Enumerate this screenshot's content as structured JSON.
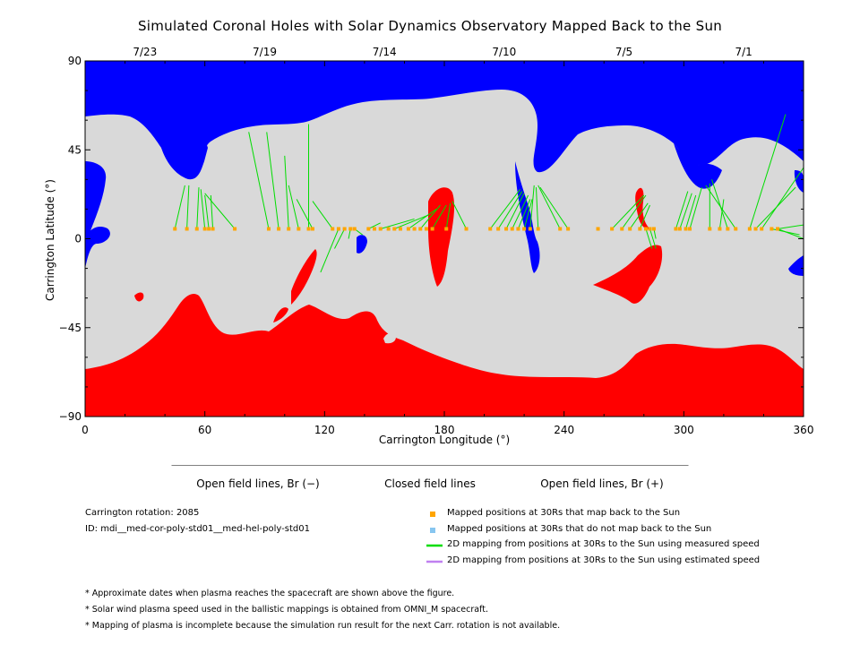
{
  "title": "Simulated Coronal Holes with Solar Dynamics Observatory Mapped Back to the Sun",
  "chart_data": {
    "type": "heatmap",
    "xlabel": "Carrington Longitude (°)",
    "ylabel": "Carrington Latitude (°)",
    "xlim": [
      0,
      360
    ],
    "ylim": [
      -90,
      90
    ],
    "x_ticks": [
      0,
      60,
      120,
      180,
      240,
      300,
      360
    ],
    "y_ticks": [
      90,
      45,
      0,
      -45,
      -90
    ],
    "y_tick_labels": [
      "90",
      "45",
      "0",
      "−45",
      "−90"
    ],
    "top_axis_dates": [
      {
        "label": "7/23",
        "lon": 30
      },
      {
        "label": "7/19",
        "lon": 90
      },
      {
        "label": "7/14",
        "lon": 150
      },
      {
        "label": "7/10",
        "lon": 210
      },
      {
        "label": "7/5",
        "lon": 270
      },
      {
        "label": "7/1",
        "lon": 330
      }
    ],
    "colorbar": [
      {
        "label": "Open field lines, Br (−)",
        "color": "#0000ff"
      },
      {
        "label": "Closed field lines",
        "color": "#d9d9d9"
      },
      {
        "label": "Open field lines, Br (+)",
        "color": "#ff0000"
      }
    ],
    "regions": {
      "north_negative_color": "#0000ff",
      "closed_color": "#d9d9d9",
      "south_positive_color": "#ff0000"
    },
    "mapped_points_lon": [
      45,
      51,
      56,
      60,
      62,
      64,
      75,
      92,
      97,
      102,
      107,
      112,
      114,
      124,
      127,
      130,
      133,
      135,
      142,
      145,
      148,
      152,
      155,
      158,
      162,
      165,
      168,
      171,
      174,
      181,
      191,
      203,
      207,
      211,
      214,
      217,
      220,
      223,
      227,
      238,
      242,
      257,
      264,
      269,
      273,
      278,
      281,
      283,
      285,
      296,
      298,
      301,
      303,
      313,
      318,
      322,
      326,
      333,
      336,
      339,
      344,
      347
    ],
    "mapped_points_lat": 5,
    "mapping_lines": [
      {
        "from": [
          45,
          5
        ],
        "to": [
          50,
          27
        ]
      },
      {
        "from": [
          51,
          5
        ],
        "to": [
          52,
          27
        ]
      },
      {
        "from": [
          56,
          5
        ],
        "to": [
          57,
          26
        ]
      },
      {
        "from": [
          60,
          5
        ],
        "to": [
          58,
          25
        ]
      },
      {
        "from": [
          62,
          5
        ],
        "to": [
          60,
          22
        ]
      },
      {
        "from": [
          64,
          5
        ],
        "to": [
          63,
          22
        ]
      },
      {
        "from": [
          75,
          5
        ],
        "to": [
          60,
          23
        ]
      },
      {
        "from": [
          92,
          5
        ],
        "to": [
          82,
          54
        ]
      },
      {
        "from": [
          97,
          5
        ],
        "to": [
          91,
          54
        ]
      },
      {
        "from": [
          102,
          5
        ],
        "to": [
          100,
          42
        ]
      },
      {
        "from": [
          107,
          5
        ],
        "to": [
          102,
          27
        ]
      },
      {
        "from": [
          112,
          5
        ],
        "to": [
          112,
          58
        ]
      },
      {
        "from": [
          114,
          5
        ],
        "to": [
          106,
          20
        ]
      },
      {
        "from": [
          124,
          5
        ],
        "to": [
          114,
          19
        ]
      },
      {
        "from": [
          127,
          5
        ],
        "to": [
          118,
          -17
        ]
      },
      {
        "from": [
          130,
          5
        ],
        "to": [
          125,
          -5
        ]
      },
      {
        "from": [
          133,
          5
        ],
        "to": [
          132,
          0
        ]
      },
      {
        "from": [
          135,
          5
        ],
        "to": [
          139,
          2
        ]
      },
      {
        "from": [
          142,
          5
        ],
        "to": [
          148,
          8
        ]
      },
      {
        "from": [
          148,
          5
        ],
        "to": [
          165,
          10
        ]
      },
      {
        "from": [
          155,
          5
        ],
        "to": [
          172,
          12
        ]
      },
      {
        "from": [
          162,
          5
        ],
        "to": [
          176,
          15
        ]
      },
      {
        "from": [
          168,
          5
        ],
        "to": [
          178,
          17
        ]
      },
      {
        "from": [
          174,
          5
        ],
        "to": [
          181,
          17
        ]
      },
      {
        "from": [
          181,
          5
        ],
        "to": [
          183,
          18
        ]
      },
      {
        "from": [
          191,
          5
        ],
        "to": [
          184,
          19
        ]
      },
      {
        "from": [
          203,
          5
        ],
        "to": [
          218,
          25
        ]
      },
      {
        "from": [
          207,
          5
        ],
        "to": [
          219,
          24
        ]
      },
      {
        "from": [
          211,
          5
        ],
        "to": [
          220,
          23
        ]
      },
      {
        "from": [
          214,
          5
        ],
        "to": [
          222,
          22
        ]
      },
      {
        "from": [
          217,
          5
        ],
        "to": [
          223,
          20
        ]
      },
      {
        "from": [
          220,
          5
        ],
        "to": [
          224,
          20
        ]
      },
      {
        "from": [
          223,
          5
        ],
        "to": [
          225,
          27
        ]
      },
      {
        "from": [
          227,
          5
        ],
        "to": [
          226,
          26
        ]
      },
      {
        "from": [
          238,
          5
        ],
        "to": [
          227,
          27
        ]
      },
      {
        "from": [
          242,
          5
        ],
        "to": [
          228,
          26
        ]
      },
      {
        "from": [
          264,
          5
        ],
        "to": [
          280,
          22
        ]
      },
      {
        "from": [
          269,
          5
        ],
        "to": [
          281,
          22
        ]
      },
      {
        "from": [
          273,
          5
        ],
        "to": [
          282,
          18
        ]
      },
      {
        "from": [
          278,
          5
        ],
        "to": [
          283,
          17
        ]
      },
      {
        "from": [
          281,
          5
        ],
        "to": [
          284,
          -5
        ]
      },
      {
        "from": [
          283,
          5
        ],
        "to": [
          286,
          -5
        ]
      },
      {
        "from": [
          285,
          5
        ],
        "to": [
          286,
          0
        ]
      },
      {
        "from": [
          296,
          5
        ],
        "to": [
          302,
          24
        ]
      },
      {
        "from": [
          298,
          5
        ],
        "to": [
          304,
          23
        ]
      },
      {
        "from": [
          301,
          5
        ],
        "to": [
          306,
          22
        ]
      },
      {
        "from": [
          303,
          5
        ],
        "to": [
          309,
          26
        ]
      },
      {
        "from": [
          313,
          5
        ],
        "to": [
          313,
          28
        ]
      },
      {
        "from": [
          318,
          5
        ],
        "to": [
          320,
          20
        ]
      },
      {
        "from": [
          322,
          5
        ],
        "to": [
          314,
          30
        ]
      },
      {
        "from": [
          326,
          5
        ],
        "to": [
          311,
          27
        ]
      },
      {
        "from": [
          333,
          5
        ],
        "to": [
          351,
          63
        ]
      },
      {
        "from": [
          336,
          5
        ],
        "to": [
          356,
          26
        ]
      },
      {
        "from": [
          339,
          5
        ],
        "to": [
          360,
          36
        ]
      },
      {
        "from": [
          344,
          5
        ],
        "to": [
          358,
          2
        ]
      },
      {
        "from": [
          347,
          5
        ],
        "to": [
          360,
          0
        ]
      },
      {
        "from": [
          347,
          5
        ],
        "to": [
          360,
          7
        ]
      }
    ]
  },
  "info": {
    "rotation": "Carrington rotation: 2085",
    "id": "ID: mdi__med-cor-poly-std01__med-hel-poly-std01"
  },
  "legend": [
    {
      "label": "Mapped positions at 30Rs that map back to the Sun",
      "type": "square",
      "color": "#ffa500"
    },
    {
      "label": "Mapped positions at 30Rs that do not map back to the Sun",
      "type": "square",
      "color": "#87c6f0"
    },
    {
      "label": "2D mapping from positions at 30Rs to the Sun using measured speed",
      "type": "line",
      "color": "#00dd00"
    },
    {
      "label": "2D mapping from positions at 30Rs to the Sun using estimated speed",
      "type": "line",
      "color": "#c080f0"
    }
  ],
  "notes": [
    "* Approximate dates when plasma reaches the spacecraft are shown above the figure.",
    "* Solar wind plasma speed used in the ballistic mappings is obtained from OMNI_M spacecraft.",
    "* Mapping of plasma is incomplete because the simulation run result for the next Carr. rotation is not available."
  ]
}
